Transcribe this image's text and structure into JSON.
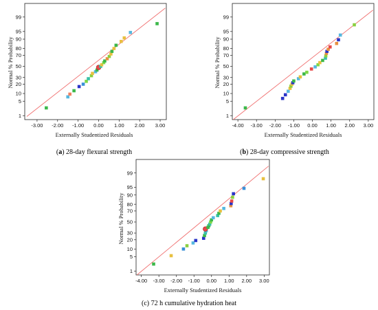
{
  "chart_data": [
    {
      "type": "scatter",
      "caption_letter": "a",
      "caption_text": "28-day flexural strength",
      "xlabel": "Externally Studentized Residuals",
      "ylabel": "Normal % Probability",
      "xlim": [
        -3.6,
        3.3
      ],
      "xticks": [
        -3,
        -2,
        -1,
        0,
        1,
        2,
        3
      ],
      "xtick_labels": [
        "-3.00",
        "-2.00",
        "-1.00",
        "0.00",
        "1.00",
        "2.00",
        "3.00"
      ],
      "yticks": [
        1,
        5,
        10,
        20,
        30,
        50,
        70,
        80,
        90,
        95,
        99
      ],
      "ytick_labels": [
        "1",
        "5",
        "10",
        "20",
        "30",
        "50",
        "70",
        "80",
        "90",
        "95",
        "99"
      ],
      "fit_line": {
        "from": [
          -3.5,
          0.9
        ],
        "to": [
          3.25,
          99.7
        ]
      },
      "points": [
        {
          "x": -2.55,
          "y": 2.5,
          "color": "#3cb84a"
        },
        {
          "x": -1.5,
          "y": 7.5,
          "color": "#56b8e0"
        },
        {
          "x": -1.4,
          "y": 9.5,
          "color": "#ef8060"
        },
        {
          "x": -1.2,
          "y": 12.5,
          "color": "#3cb84a"
        },
        {
          "x": -0.95,
          "y": 17,
          "color": "#2a35c8"
        },
        {
          "x": -0.75,
          "y": 20,
          "color": "#3a90d8"
        },
        {
          "x": -0.6,
          "y": 24,
          "color": "#7ed848"
        },
        {
          "x": -0.5,
          "y": 28,
          "color": "#38c0a8"
        },
        {
          "x": -0.35,
          "y": 33,
          "color": "#8ad040"
        },
        {
          "x": -0.3,
          "y": 37,
          "color": "#e8c040"
        },
        {
          "x": -0.15,
          "y": 40,
          "color": "#56b8e0"
        },
        {
          "x": -0.08,
          "y": 43,
          "color": "#3cb84a"
        },
        {
          "x": 0.0,
          "y": 48,
          "color": "#e84848",
          "center": true
        },
        {
          "x": 0.1,
          "y": 50,
          "color": "#38c0a8"
        },
        {
          "x": 0.15,
          "y": 53,
          "color": "#e8c040"
        },
        {
          "x": 0.25,
          "y": 57,
          "color": "#7ed848"
        },
        {
          "x": 0.3,
          "y": 60,
          "color": "#3cb84a"
        },
        {
          "x": 0.42,
          "y": 64,
          "color": "#e89040"
        },
        {
          "x": 0.52,
          "y": 68,
          "color": "#8ad040"
        },
        {
          "x": 0.6,
          "y": 72,
          "color": "#e8c040"
        },
        {
          "x": 0.65,
          "y": 76,
          "color": "#3cb84a"
        },
        {
          "x": 0.75,
          "y": 80,
          "color": "#e8c040"
        },
        {
          "x": 0.85,
          "y": 84,
          "color": "#3cb84a"
        },
        {
          "x": 1.1,
          "y": 88,
          "color": "#e8c040"
        },
        {
          "x": 1.25,
          "y": 91,
          "color": "#e8c040"
        },
        {
          "x": 1.55,
          "y": 94.5,
          "color": "#56b8e0"
        },
        {
          "x": 2.85,
          "y": 97.8,
          "color": "#3cb84a"
        }
      ]
    },
    {
      "type": "scatter",
      "caption_letter": "b",
      "caption_text": "28-day compressive strength",
      "xlabel": "Externally Studentized Residuals",
      "ylabel": "Normal % Probability",
      "xlim": [
        -4.3,
        3.3
      ],
      "xticks": [
        -4,
        -3,
        -2,
        -1,
        0,
        1,
        2,
        3
      ],
      "xtick_labels": [
        "-4.00",
        "-3.00",
        "-2.00",
        "-1.00",
        "0.00",
        "1.00",
        "2.00",
        "3.00"
      ],
      "yticks": [
        1,
        5,
        10,
        20,
        30,
        50,
        70,
        80,
        90,
        95,
        99
      ],
      "ytick_labels": [
        "1",
        "5",
        "10",
        "20",
        "30",
        "50",
        "70",
        "80",
        "90",
        "95",
        "99"
      ],
      "fit_line": {
        "from": [
          -4.25,
          0.6
        ],
        "to": [
          3.25,
          99.6
        ]
      },
      "points": [
        {
          "x": -3.6,
          "y": 2.5,
          "color": "#3cb84a"
        },
        {
          "x": -1.6,
          "y": 6.5,
          "color": "#2a35c8"
        },
        {
          "x": -1.45,
          "y": 9,
          "color": "#2a35c8"
        },
        {
          "x": -1.3,
          "y": 12,
          "color": "#56b8e0"
        },
        {
          "x": -1.2,
          "y": 15,
          "color": "#e8c040"
        },
        {
          "x": -1.15,
          "y": 17.5,
          "color": "#8ad040"
        },
        {
          "x": -1.1,
          "y": 20,
          "color": "#e8c040"
        },
        {
          "x": -1.05,
          "y": 22,
          "color": "#2a35c8"
        },
        {
          "x": -1.0,
          "y": 24.5,
          "color": "#3cb84a"
        },
        {
          "x": -0.75,
          "y": 28,
          "color": "#56b8e0"
        },
        {
          "x": -0.65,
          "y": 31,
          "color": "#e8c040"
        },
        {
          "x": -0.45,
          "y": 36,
          "color": "#3cb84a"
        },
        {
          "x": -0.3,
          "y": 39,
          "color": "#7ed848"
        },
        {
          "x": -0.05,
          "y": 45,
          "color": "#e84848"
        },
        {
          "x": 0.15,
          "y": 49,
          "color": "#56b8e0"
        },
        {
          "x": 0.3,
          "y": 53,
          "color": "#7ed848"
        },
        {
          "x": 0.4,
          "y": 57,
          "color": "#e8c040"
        },
        {
          "x": 0.55,
          "y": 61,
          "color": "#3cb84a"
        },
        {
          "x": 0.7,
          "y": 65,
          "color": "#38c0a8"
        },
        {
          "x": 0.72,
          "y": 69,
          "color": "#8ad040"
        },
        {
          "x": 0.75,
          "y": 73,
          "color": "#e89040"
        },
        {
          "x": 0.78,
          "y": 76,
          "color": "#2a35c8"
        },
        {
          "x": 0.85,
          "y": 79,
          "color": "#e89040"
        },
        {
          "x": 0.95,
          "y": 82,
          "color": "#e84848"
        },
        {
          "x": 1.3,
          "y": 86,
          "color": "#e89040"
        },
        {
          "x": 1.4,
          "y": 89.5,
          "color": "#2a35c8"
        },
        {
          "x": 1.5,
          "y": 93,
          "color": "#56b8e0"
        },
        {
          "x": 2.25,
          "y": 97.5,
          "color": "#8ad040"
        }
      ]
    },
    {
      "type": "scatter",
      "caption_letter": "c",
      "caption_text": "72 h cumulative hydration heat",
      "xlabel": "Externally Studentized Residuals",
      "ylabel": "Normal % Probability",
      "xlim": [
        -4.3,
        3.3
      ],
      "xticks": [
        -4,
        -3,
        -2,
        -1,
        0,
        1,
        2,
        3
      ],
      "xtick_labels": [
        "-4.00",
        "-3.00",
        "-2.00",
        "-1.00",
        "0.00",
        "1.00",
        "2.00",
        "3.00"
      ],
      "yticks": [
        1,
        5,
        10,
        20,
        30,
        50,
        70,
        80,
        90,
        95,
        99
      ],
      "ytick_labels": [
        "1",
        "5",
        "10",
        "20",
        "30",
        "50",
        "70",
        "80",
        "90",
        "95",
        "99"
      ],
      "fit_line": {
        "from": [
          -4.25,
          0.6
        ],
        "to": [
          3.25,
          99.6
        ]
      },
      "points": [
        {
          "x": -3.3,
          "y": 2.3,
          "color": "#3cb84a"
        },
        {
          "x": -2.3,
          "y": 5.5,
          "color": "#e8c040"
        },
        {
          "x": -1.6,
          "y": 10,
          "color": "#3a90d8"
        },
        {
          "x": -1.4,
          "y": 13,
          "color": "#8ad040"
        },
        {
          "x": -1.05,
          "y": 16,
          "color": "#56b8e0"
        },
        {
          "x": -0.9,
          "y": 19,
          "color": "#2a35c8"
        },
        {
          "x": -0.45,
          "y": 22,
          "color": "#2a35c8"
        },
        {
          "x": -0.4,
          "y": 26,
          "color": "#3cb84a"
        },
        {
          "x": -0.35,
          "y": 30,
          "color": "#38c0a8"
        },
        {
          "x": -0.3,
          "y": 34,
          "color": "#56b8e0"
        },
        {
          "x": -0.35,
          "y": 37,
          "color": "#e84848",
          "center": true
        },
        {
          "x": -0.2,
          "y": 40,
          "color": "#3cb84a"
        },
        {
          "x": -0.15,
          "y": 43,
          "color": "#3cb84a"
        },
        {
          "x": -0.1,
          "y": 46,
          "color": "#38c0a8"
        },
        {
          "x": -0.05,
          "y": 50,
          "color": "#7ed848"
        },
        {
          "x": 0.0,
          "y": 54,
          "color": "#3cb84a"
        },
        {
          "x": 0.1,
          "y": 58,
          "color": "#56b8e0"
        },
        {
          "x": 0.35,
          "y": 62,
          "color": "#38c0a8"
        },
        {
          "x": 0.42,
          "y": 66,
          "color": "#3cb84a"
        },
        {
          "x": 0.5,
          "y": 70,
          "color": "#e8c040"
        },
        {
          "x": 0.7,
          "y": 74,
          "color": "#56b8e0"
        },
        {
          "x": 1.1,
          "y": 78,
          "color": "#e89040"
        },
        {
          "x": 1.12,
          "y": 81,
          "color": "#2a35c8"
        },
        {
          "x": 1.15,
          "y": 84,
          "color": "#e84848"
        },
        {
          "x": 1.2,
          "y": 88,
          "color": "#8ad040"
        },
        {
          "x": 1.25,
          "y": 91,
          "color": "#2a35c8"
        },
        {
          "x": 1.85,
          "y": 94.5,
          "color": "#3a90d8"
        },
        {
          "x": 2.95,
          "y": 98,
          "color": "#e8c040"
        }
      ]
    }
  ]
}
